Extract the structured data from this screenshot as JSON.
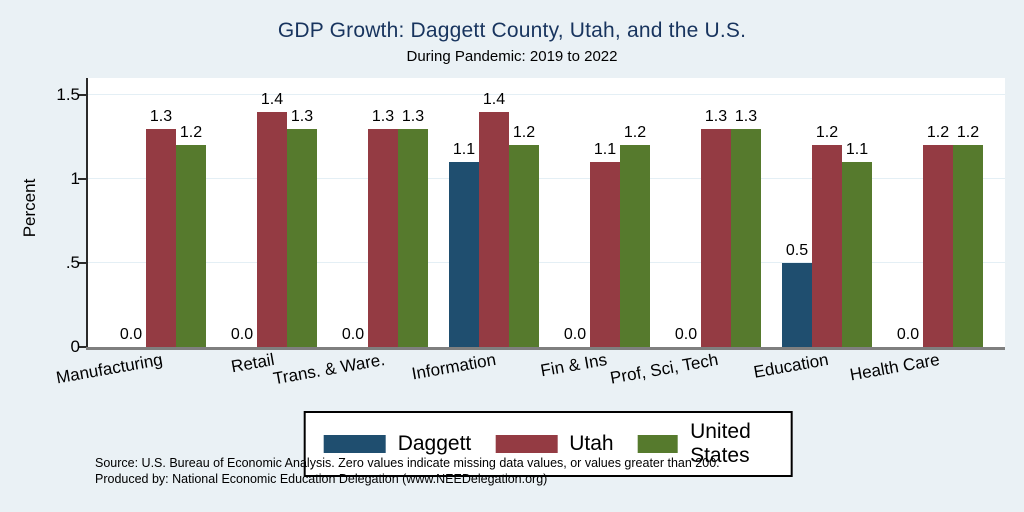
{
  "colors": {
    "background": "#eaf1f5",
    "title": "#18345e",
    "plot_background": "#ffffff",
    "grid": "#e4eff5",
    "y_axis": "#2b2b2b",
    "x_axis": "#7f7f7f",
    "text": "#000000"
  },
  "footer": {
    "line1": "Source: U.S. Bureau of Economic Analysis. Zero values indicate missing data values, or values greater than 200.",
    "line2": "Produced by: National Economic Education Delegation (www.NEEDelegation.org)"
  },
  "chart_data": {
    "type": "bar",
    "title": "GDP Growth: Daggett County, Utah, and the U.S.",
    "subtitle": "During Pandemic: 2019 to 2022",
    "xlabel": "",
    "ylabel": "Percent",
    "ylim": [
      0,
      1.6
    ],
    "yticks": [
      0,
      0.5,
      1,
      1.5
    ],
    "ytick_labels": [
      "0",
      ".5",
      "1",
      "1.5"
    ],
    "grid": true,
    "legend_position": "bottom",
    "bar_label_decimals": 1,
    "zero_note": "Zero values indicate missing data",
    "categories": [
      "Manufacturing",
      "Retail",
      "Trans. & Ware.",
      "Information",
      "Fin & Ins",
      "Prof, Sci, Tech",
      "Education",
      "Health Care"
    ],
    "series": [
      {
        "name": "Daggett",
        "color": "#1f4e6f",
        "values": [
          0.0,
          0.0,
          0.0,
          1.1,
          0.0,
          0.0,
          0.5,
          0.0
        ]
      },
      {
        "name": "Utah",
        "color": "#943b43",
        "values": [
          1.3,
          1.4,
          1.3,
          1.4,
          1.1,
          1.3,
          1.2,
          1.2
        ]
      },
      {
        "name": "United States",
        "color": "#567a2d",
        "values": [
          1.2,
          1.3,
          1.3,
          1.2,
          1.2,
          1.3,
          1.1,
          1.2
        ]
      }
    ]
  }
}
